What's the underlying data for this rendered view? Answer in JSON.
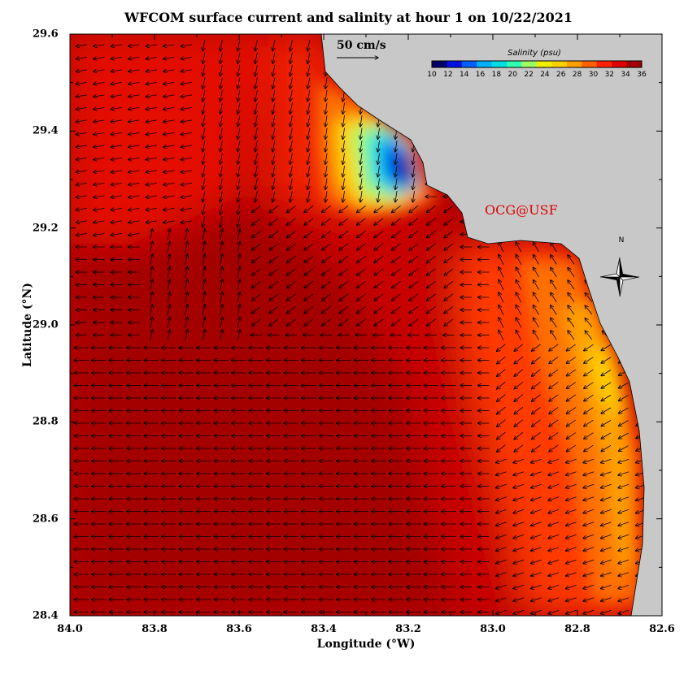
{
  "title": "WFCOM surface current and salinity at hour 1 on 10/22/2021",
  "xlabel": "Longitude (°W)",
  "ylabel": "Latitude (°N)",
  "x_ticks": [
    "84.0",
    "83.8",
    "83.6",
    "83.4",
    "83.2",
    "83.0",
    "82.8",
    "82.6"
  ],
  "y_ticks": [
    "29.6",
    "29.4",
    "29.2",
    "29.0",
    "28.8",
    "28.6",
    "28.4"
  ],
  "scale_label": "50 cm/s",
  "colorbar": {
    "title": "Salinity (psu)",
    "ticks": [
      "10",
      "12",
      "14",
      "16",
      "18",
      "20",
      "22",
      "24",
      "26",
      "28",
      "30",
      "32",
      "34",
      "36"
    ],
    "colors": [
      "#00006a",
      "#0010e0",
      "#0060ff",
      "#00b0ff",
      "#00e0e0",
      "#30ffb0",
      "#a0ff60",
      "#f0f000",
      "#ffd000",
      "#ffa000",
      "#ff6000",
      "#ff2000",
      "#e00000",
      "#a00000"
    ]
  },
  "credit": "OCG@USF",
  "north_label": "N",
  "colors": {
    "land": "#c8c8c8",
    "credit": "#dd0000",
    "ocean_deep": "#a80000"
  },
  "chart_data": {
    "type": "heatmap",
    "title": "WFCOM surface current and salinity at hour 1 on 10/22/2021",
    "xlabel": "Longitude (°W)",
    "ylabel": "Latitude (°N)",
    "xlim": [
      84.0,
      82.6
    ],
    "ylim": [
      28.4,
      29.6
    ],
    "colorbar_range": [
      10,
      36
    ],
    "variable": "Salinity (psu)",
    "vector_field": "surface current",
    "vector_scale": "50 cm/s"
  }
}
